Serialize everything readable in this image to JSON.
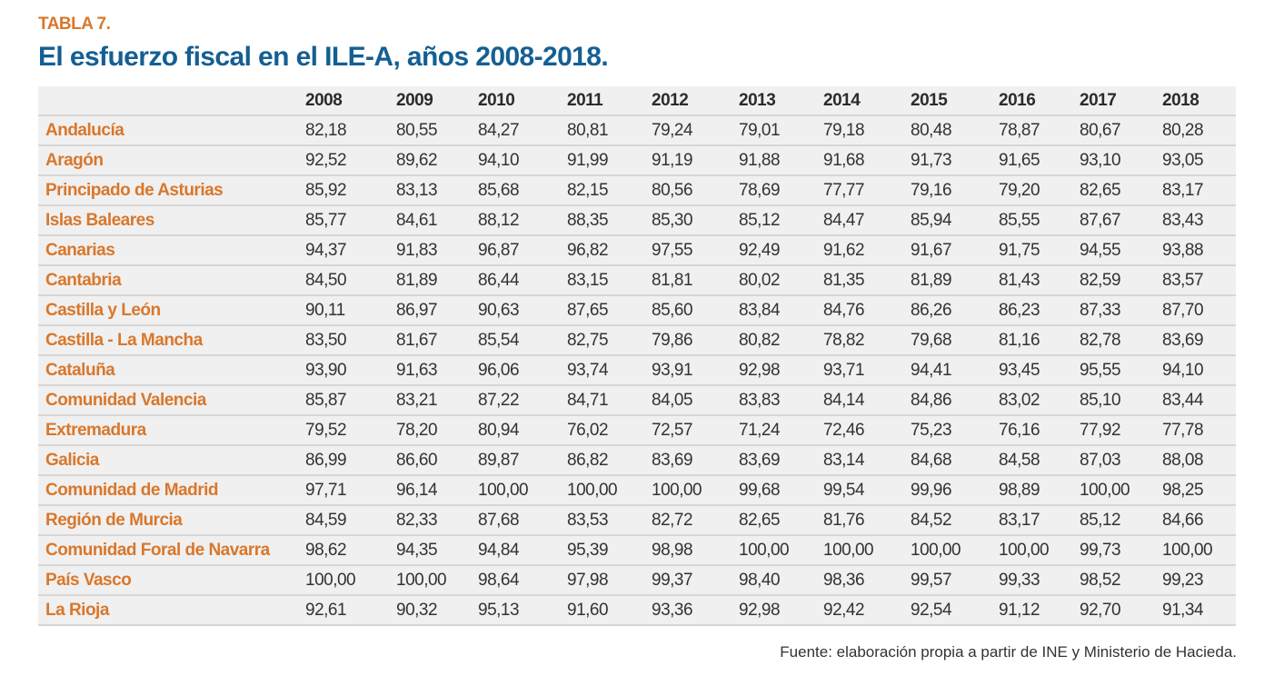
{
  "table_label": "TABLA 7.",
  "title": "El esfuerzo fiscal en el ILE-A, años 2008-2018.",
  "colors": {
    "accent_orange": "#d9772b",
    "title_blue": "#145f93",
    "table_bg": "#f0f0f0"
  },
  "table": {
    "headers": [
      "",
      "2008",
      "2009",
      "2010",
      "2011",
      "2012",
      "2013",
      "2014",
      "2015",
      "2016",
      "2017",
      "2018"
    ],
    "rows": [
      [
        "Andalucía",
        "82,18",
        "80,55",
        "84,27",
        "80,81",
        "79,24",
        "79,01",
        "79,18",
        "80,48",
        "78,87",
        "80,67",
        "80,28"
      ],
      [
        "Aragón",
        "92,52",
        "89,62",
        "94,10",
        "91,99",
        "91,19",
        "91,88",
        "91,68",
        "91,73",
        "91,65",
        "93,10",
        "93,05"
      ],
      [
        "Principado de Asturias",
        "85,92",
        "83,13",
        "85,68",
        "82,15",
        "80,56",
        "78,69",
        "77,77",
        "79,16",
        "79,20",
        "82,65",
        "83,17"
      ],
      [
        "Islas Baleares",
        "85,77",
        "84,61",
        "88,12",
        "88,35",
        "85,30",
        "85,12",
        "84,47",
        "85,94",
        "85,55",
        "87,67",
        "83,43"
      ],
      [
        "Canarias",
        "94,37",
        "91,83",
        "96,87",
        "96,82",
        "97,55",
        "92,49",
        "91,62",
        "91,67",
        "91,75",
        "94,55",
        "93,88"
      ],
      [
        "Cantabria",
        "84,50",
        "81,89",
        "86,44",
        "83,15",
        "81,81",
        "80,02",
        "81,35",
        "81,89",
        "81,43",
        "82,59",
        "83,57"
      ],
      [
        "Castilla y León",
        "90,11",
        "86,97",
        "90,63",
        "87,65",
        "85,60",
        "83,84",
        "84,76",
        "86,26",
        "86,23",
        "87,33",
        "87,70"
      ],
      [
        "Castilla - La Mancha",
        "83,50",
        "81,67",
        "85,54",
        "82,75",
        "79,86",
        "80,82",
        "78,82",
        "79,68",
        "81,16",
        "82,78",
        "83,69"
      ],
      [
        "Cataluña",
        "93,90",
        "91,63",
        "96,06",
        "93,74",
        "93,91",
        "92,98",
        "93,71",
        "94,41",
        "93,45",
        "95,55",
        "94,10"
      ],
      [
        "Comunidad Valencia",
        "85,87",
        "83,21",
        "87,22",
        "84,71",
        "84,05",
        "83,83",
        "84,14",
        "84,86",
        "83,02",
        "85,10",
        "83,44"
      ],
      [
        "Extremadura",
        "79,52",
        "78,20",
        "80,94",
        "76,02",
        "72,57",
        "71,24",
        "72,46",
        "75,23",
        "76,16",
        "77,92",
        "77,78"
      ],
      [
        "Galicia",
        "86,99",
        "86,60",
        "89,87",
        "86,82",
        "83,69",
        "83,69",
        "83,14",
        "84,68",
        "84,58",
        "87,03",
        "88,08"
      ],
      [
        "Comunidad de Madrid",
        "97,71",
        "96,14",
        "100,00",
        "100,00",
        "100,00",
        "99,68",
        "99,54",
        "99,96",
        "98,89",
        "100,00",
        "98,25"
      ],
      [
        "Región de Murcia",
        "84,59",
        "82,33",
        "87,68",
        "83,53",
        "82,72",
        "82,65",
        "81,76",
        "84,52",
        "83,17",
        "85,12",
        "84,66"
      ],
      [
        "Comunidad Foral de Navarra",
        "98,62",
        "94,35",
        "94,84",
        "95,39",
        "98,98",
        "100,00",
        "100,00",
        "100,00",
        "100,00",
        "99,73",
        "100,00"
      ],
      [
        "País Vasco",
        "100,00",
        "100,00",
        "98,64",
        "97,98",
        "99,37",
        "98,40",
        "98,36",
        "99,57",
        "99,33",
        "98,52",
        "99,23"
      ],
      [
        "La Rioja",
        "92,61",
        "90,32",
        "95,13",
        "91,60",
        "93,36",
        "92,98",
        "92,42",
        "92,54",
        "91,12",
        "92,70",
        "91,34"
      ]
    ]
  },
  "source": "Fuente: elaboración propia a partir de INE y Ministerio de Hacieda."
}
